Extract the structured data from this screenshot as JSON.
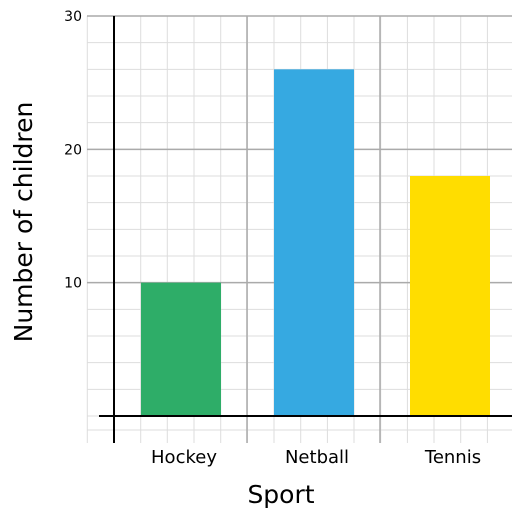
{
  "chart_data": {
    "type": "bar",
    "title": "",
    "xlabel": "Sport",
    "ylabel": "Number of children",
    "categories": [
      "Hockey",
      "Netball",
      "Tennis"
    ],
    "values": [
      10,
      26,
      18
    ],
    "colors": [
      "#2EAD68",
      "#36A9E1",
      "#FFDD00"
    ],
    "ylim": [
      0,
      30
    ],
    "yticks": [
      10,
      20,
      30
    ],
    "grid": true,
    "legend": "none"
  }
}
